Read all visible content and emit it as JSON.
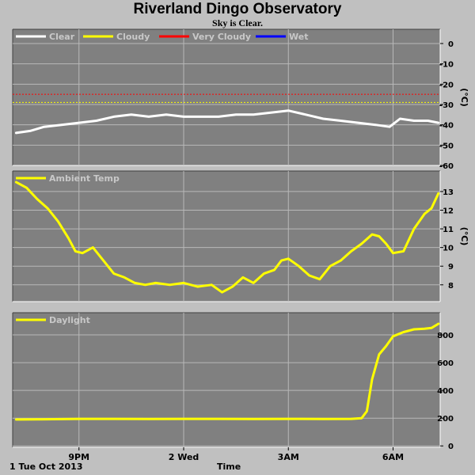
{
  "page": {
    "title": "Riverland Dingo Observatory",
    "subtitle": "Sky is Clear."
  },
  "footer": {
    "date_label": "1 Tue Oct 2013",
    "x_axis_title": "Time"
  },
  "colors": {
    "panel_bg": "#808080",
    "page_bg": "#c0c0c0",
    "grid": "#b8b8b8",
    "clear": "#ffffff",
    "cloudy": "#ffff00",
    "very_cloudy": "#ff0000",
    "wet": "#0000ff",
    "ambient": "#ffff00",
    "daylight": "#ffff00"
  },
  "chart_data": [
    {
      "type": "line",
      "id": "sky",
      "title": "",
      "ylabel": "(°C)",
      "ylim": [
        -60,
        7
      ],
      "y_ticks": [
        0,
        -10,
        -20,
        -30,
        -40,
        -50,
        -60
      ],
      "x_ticks": [
        "9PM",
        "2 Wed",
        "3AM",
        "6AM"
      ],
      "x_tick_hours": [
        21,
        24,
        27,
        30
      ],
      "x_range_hours": [
        19.1,
        31.35
      ],
      "legend": [
        {
          "label": "Clear",
          "color": "#ffffff"
        },
        {
          "label": "Cloudy",
          "color": "#ffff00"
        },
        {
          "label": "Very Cloudy",
          "color": "#ff0000"
        },
        {
          "label": "Wet",
          "color": "#0000ff"
        }
      ],
      "thresholds": [
        {
          "name": "Very Cloudy",
          "value": -25,
          "color": "#ff0000"
        },
        {
          "name": "Cloudy",
          "value": -29,
          "color": "#ffff00"
        }
      ],
      "series": [
        {
          "name": "Clear",
          "color": "#ffffff",
          "x_hours": [
            19.2,
            19.6,
            20.0,
            20.5,
            21.0,
            21.5,
            22.0,
            22.5,
            23.0,
            23.5,
            24.0,
            24.5,
            25.0,
            25.5,
            26.0,
            26.5,
            27.0,
            27.5,
            28.0,
            28.5,
            29.0,
            29.5,
            29.9,
            30.2,
            30.6,
            31.0,
            31.3
          ],
          "values": [
            -44,
            -43,
            -41,
            -40,
            -39,
            -38,
            -36,
            -35,
            -36,
            -35,
            -36,
            -36,
            -36,
            -35,
            -35,
            -34,
            -33,
            -35,
            -37,
            -38,
            -39,
            -40,
            -41,
            -37,
            -38,
            -38,
            -39
          ]
        }
      ]
    },
    {
      "type": "line",
      "id": "ambient",
      "title": "",
      "ylabel": "(°C)",
      "ylim": [
        7.1,
        14.1
      ],
      "y_ticks": [
        8,
        9,
        10,
        11,
        12,
        13
      ],
      "x_ticks": [
        "9PM",
        "2 Wed",
        "3AM",
        "6AM"
      ],
      "x_tick_hours": [
        21,
        24,
        27,
        30
      ],
      "x_range_hours": [
        19.1,
        31.35
      ],
      "legend": [
        {
          "label": "Ambient Temp",
          "color": "#ffff00"
        }
      ],
      "series": [
        {
          "name": "Ambient Temp",
          "color": "#ffff00",
          "x_hours": [
            19.2,
            19.5,
            19.8,
            20.1,
            20.4,
            20.7,
            20.9,
            21.1,
            21.4,
            21.7,
            22.0,
            22.3,
            22.6,
            22.9,
            23.2,
            23.6,
            24.0,
            24.4,
            24.8,
            25.1,
            25.4,
            25.7,
            26.0,
            26.3,
            26.6,
            26.8,
            27.0,
            27.3,
            27.6,
            27.9,
            28.2,
            28.5,
            28.8,
            29.1,
            29.4,
            29.6,
            29.8,
            30.0,
            30.3,
            30.6,
            30.9,
            31.1,
            31.3
          ],
          "values": [
            13.5,
            13.2,
            12.6,
            12.1,
            11.4,
            10.5,
            9.8,
            9.7,
            10.0,
            9.3,
            8.6,
            8.4,
            8.1,
            8.0,
            8.1,
            8.0,
            8.1,
            7.9,
            8.0,
            7.6,
            7.9,
            8.4,
            8.1,
            8.6,
            8.8,
            9.3,
            9.4,
            9.0,
            8.5,
            8.3,
            9.0,
            9.3,
            9.8,
            10.2,
            10.7,
            10.6,
            10.2,
            9.7,
            9.8,
            11.0,
            11.8,
            12.1,
            12.9
          ]
        }
      ]
    },
    {
      "type": "line",
      "id": "daylight",
      "title": "",
      "ylabel": "",
      "ylim": [
        -10,
        960
      ],
      "y_ticks": [
        0,
        200,
        400,
        600,
        800
      ],
      "x_ticks": [
        "9PM",
        "2 Wed",
        "3AM",
        "6AM"
      ],
      "x_tick_hours": [
        21,
        24,
        27,
        30
      ],
      "x_range_hours": [
        19.1,
        31.35
      ],
      "legend": [
        {
          "label": "Daylight",
          "color": "#ffff00"
        }
      ],
      "series": [
        {
          "name": "Daylight",
          "color": "#ffff00",
          "x_hours": [
            19.2,
            20.0,
            21.0,
            22.0,
            23.0,
            24.0,
            25.0,
            26.0,
            27.0,
            28.0,
            28.8,
            29.1,
            29.25,
            29.4,
            29.6,
            29.8,
            30.0,
            30.3,
            30.6,
            30.9,
            31.1,
            31.3
          ],
          "values": [
            190,
            192,
            195,
            195,
            194,
            195,
            195,
            194,
            195,
            194,
            195,
            200,
            250,
            480,
            660,
            720,
            790,
            820,
            840,
            845,
            850,
            880
          ]
        }
      ]
    }
  ]
}
